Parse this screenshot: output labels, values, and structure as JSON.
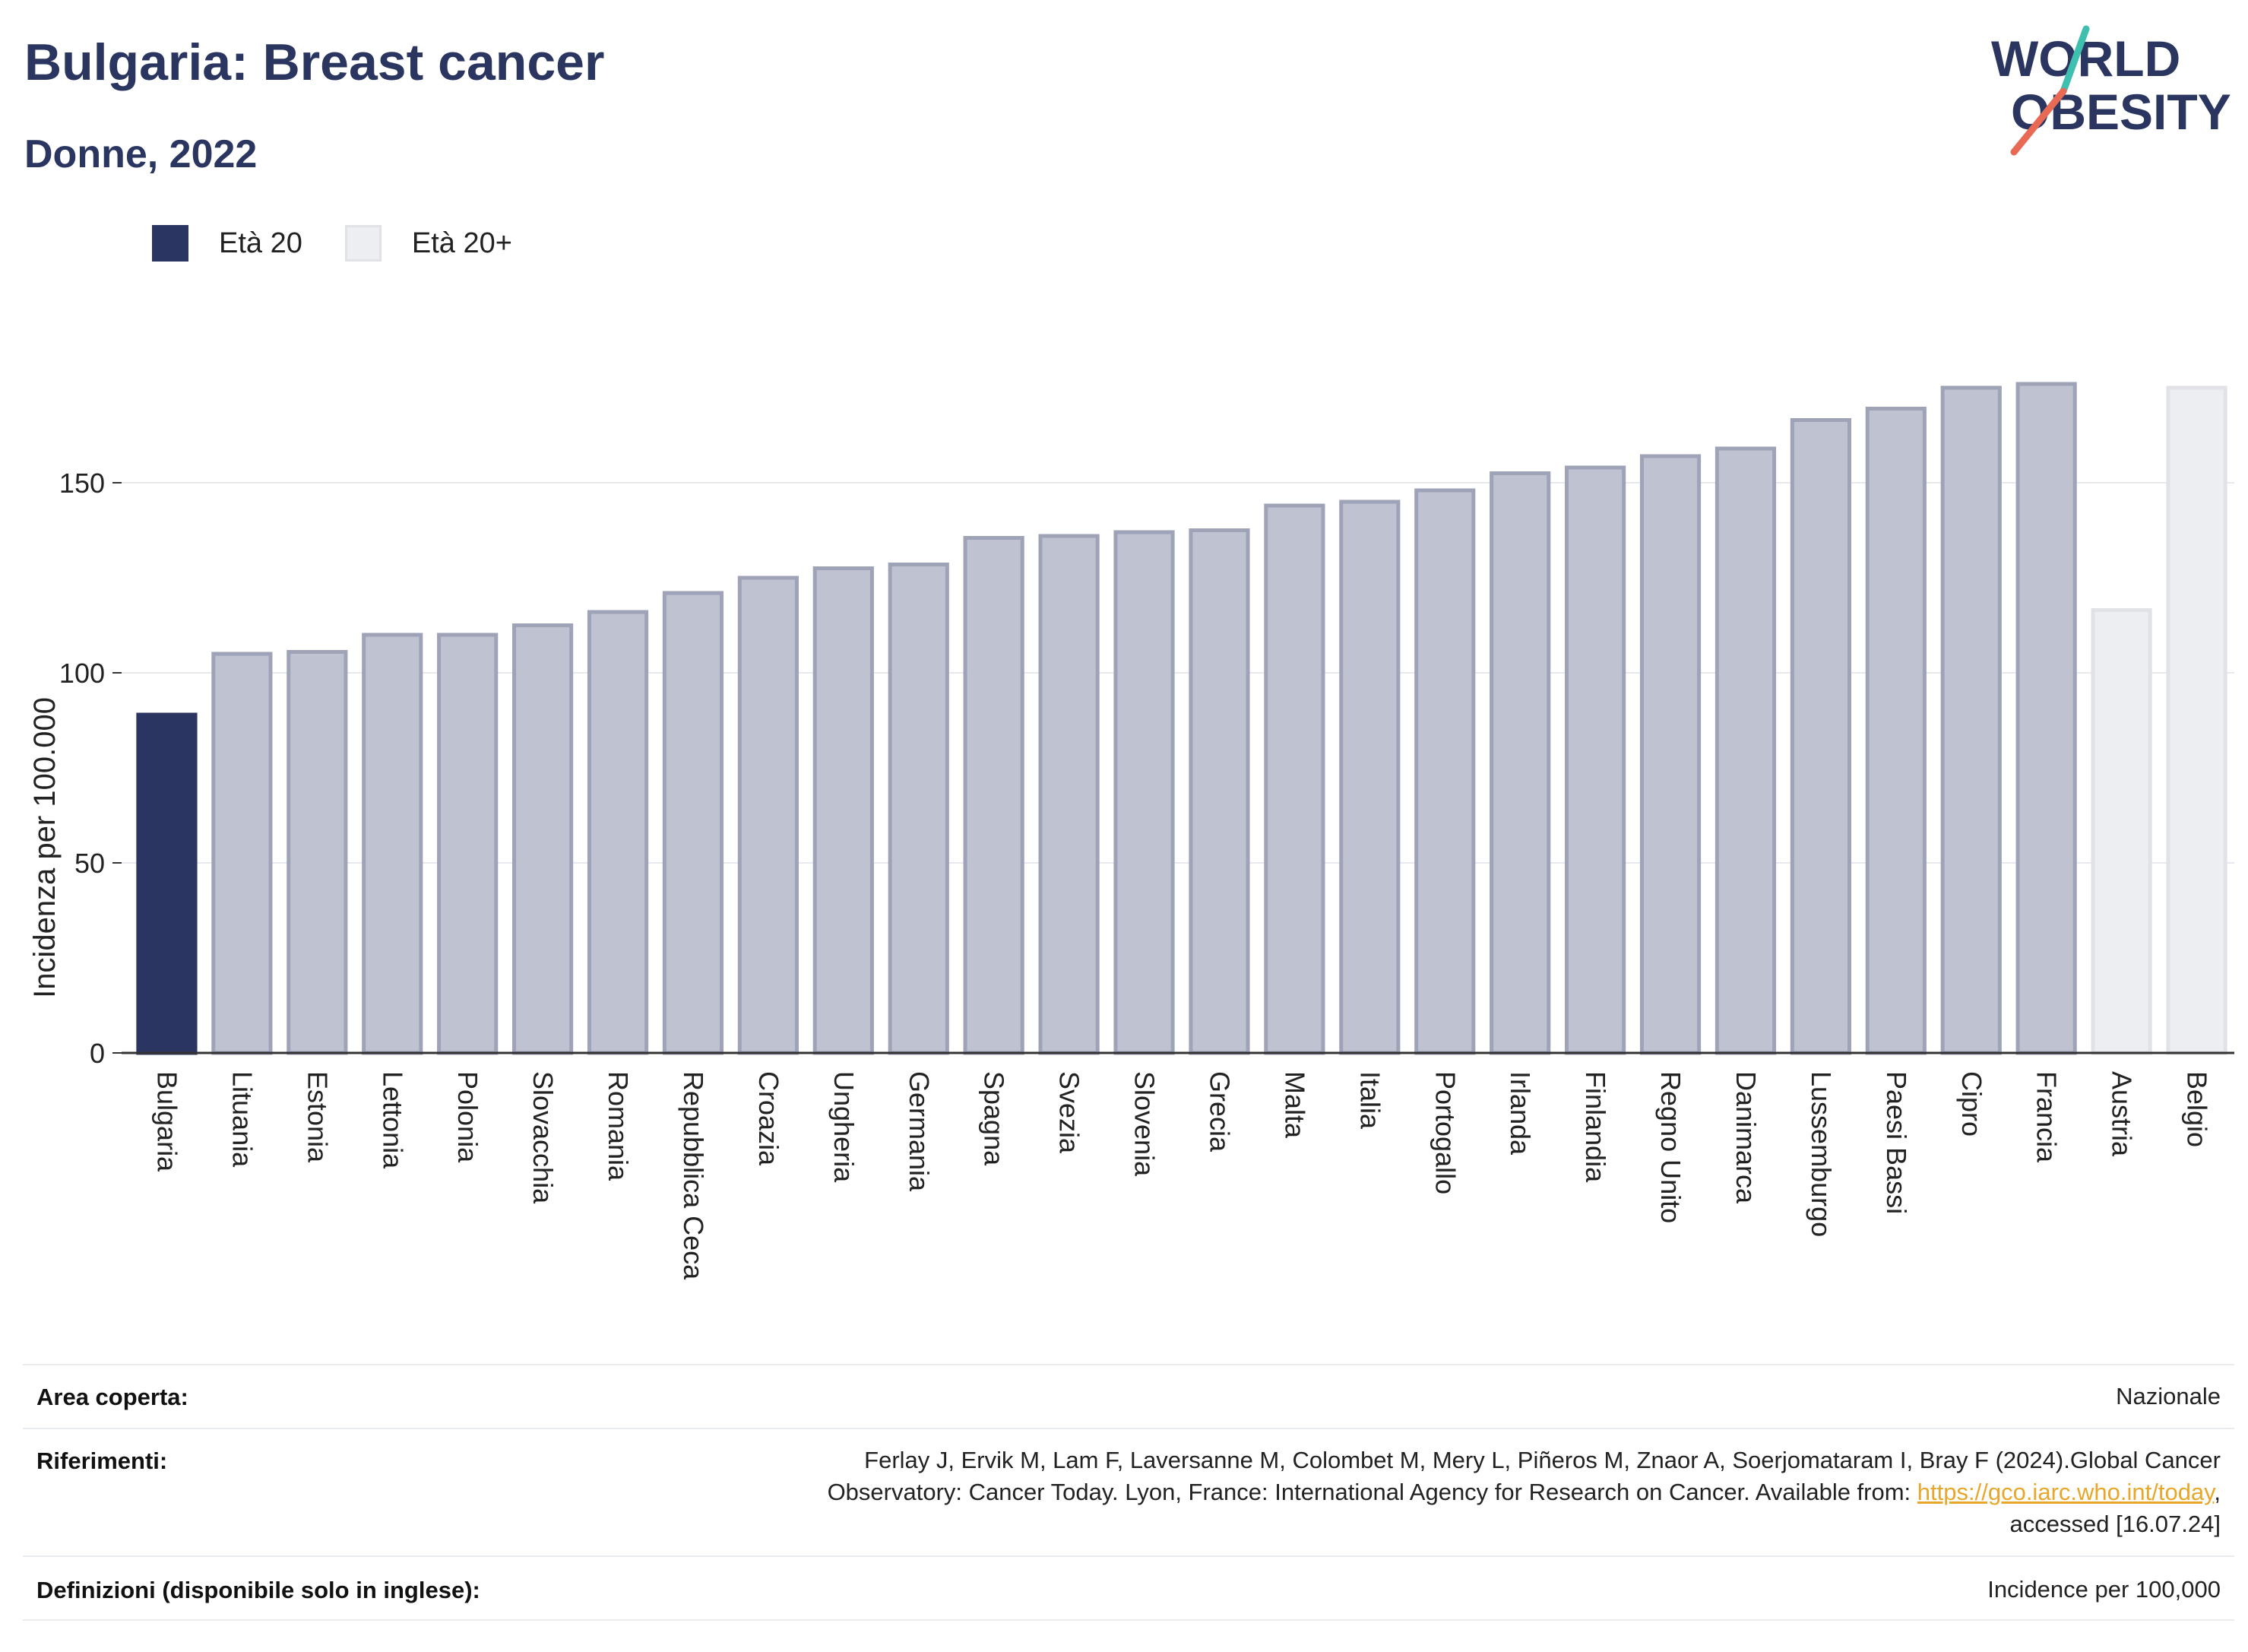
{
  "header": {
    "title": "Bulgaria: Breast cancer",
    "subtitle": "Donne, 2022"
  },
  "logo": {
    "line1": "WORLD",
    "line2": "OBESITY"
  },
  "legend": [
    {
      "label": "Età 20",
      "color": "#2b3561"
    },
    {
      "label": "Età 20+",
      "color": "#eceef2"
    }
  ],
  "chart_data": {
    "type": "bar",
    "ylabel": "Incidenza per 100.000",
    "ylim": [
      0,
      185
    ],
    "yticks": [
      0,
      50,
      100,
      150
    ],
    "grid": true,
    "legend_position": "top-left",
    "categories": [
      "Bulgaria",
      "Lituania",
      "Estonia",
      "Lettonia",
      "Polonia",
      "Slovacchia",
      "Romania",
      "Repubblica Ceca",
      "Croazia",
      "Ungheria",
      "Germania",
      "Spagna",
      "Svezia",
      "Slovenia",
      "Grecia",
      "Malta",
      "Italia",
      "Portogallo",
      "Irlanda",
      "Finlandia",
      "Regno Unito",
      "Danimarca",
      "Lussemburgo",
      "Paesi Bassi",
      "Cipro",
      "Francia",
      "Austria",
      "Belgio"
    ],
    "values": [
      89,
      105,
      105.5,
      110,
      110,
      112.5,
      116,
      121,
      125,
      127.5,
      128.5,
      135.5,
      136,
      137,
      137.5,
      144,
      145,
      148,
      152.5,
      154,
      157,
      159,
      166.5,
      169.5,
      175,
      176,
      116.5,
      175
    ],
    "bar_group": [
      "highlight",
      "other",
      "other",
      "other",
      "other",
      "other",
      "other",
      "other",
      "other",
      "other",
      "other",
      "other",
      "other",
      "other",
      "other",
      "other",
      "other",
      "other",
      "other",
      "other",
      "other",
      "other",
      "other",
      "other",
      "other",
      "other",
      "age20plus",
      "age20plus"
    ],
    "colors": {
      "highlight": "#2b3561",
      "other": "#bfc2d0",
      "other_stroke": "#9ea3b8",
      "age20plus": "#eceef2",
      "age20plus_stroke": "#e0e2e8"
    }
  },
  "info_table": {
    "area": {
      "label": "Area coperta:",
      "value": "Nazionale"
    },
    "references": {
      "label": "Riferimenti:",
      "line1": "Ferlay J, Ervik M, Lam F, Laversanne M, Colombet M, Mery L, Piñeros M, Znaor A, Soerjomataram I, Bray F (2024).Global Cancer",
      "line2_prefix": "Observatory: Cancer Today. Lyon, France: International Agency for Research on Cancer. Available from: ",
      "link": "https://gco.iarc.who.int/today",
      "line2_suffix": ",",
      "line3": "accessed [16.07.24]"
    },
    "definitions": {
      "label": "Definizioni (disponibile solo in inglese):",
      "value": "Incidence per 100,000"
    }
  }
}
